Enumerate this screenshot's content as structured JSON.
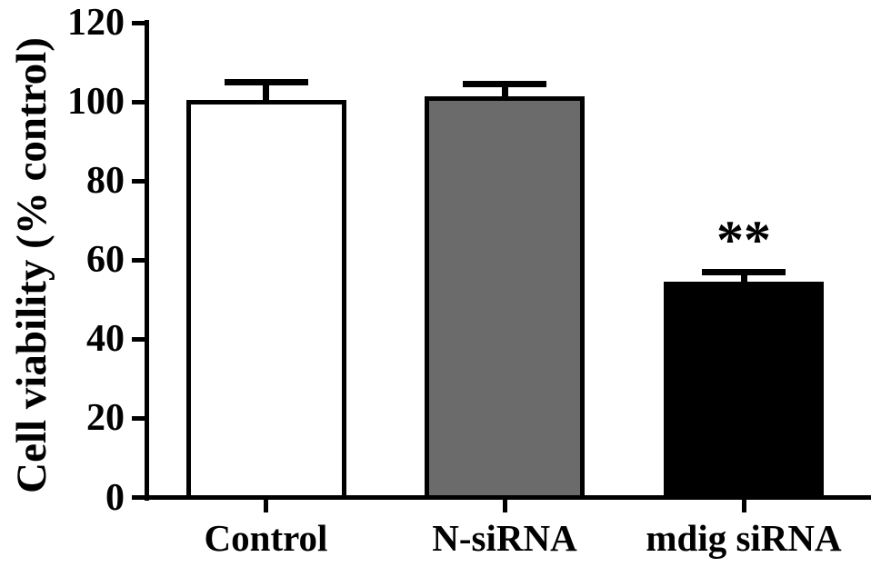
{
  "figure": {
    "kind": "scientific-bar-chart",
    "background_color": "#ffffff",
    "axis_color": "#000000",
    "text_color": "#000000"
  },
  "chart_data": {
    "type": "bar",
    "title": "",
    "xlabel": "",
    "ylabel": "Cell viability (% control)",
    "categories": [
      "Control",
      "N-siRNA",
      "mdig siRNA"
    ],
    "values": [
      100.5,
      101.5,
      54.5
    ],
    "errors_upper": [
      4.5,
      3,
      2.5
    ],
    "annotations": [
      "",
      "",
      "**"
    ],
    "yticks": [
      0,
      20,
      40,
      60,
      80,
      100,
      120
    ],
    "ylim": [
      0,
      120
    ],
    "grid": false,
    "legend_position": "none",
    "bar_fill_colors": [
      "#ffffff",
      "#6b6b6b",
      "#000000"
    ],
    "bar_border_color": "#000000",
    "error_bar_style": "upper-cap-only"
  }
}
